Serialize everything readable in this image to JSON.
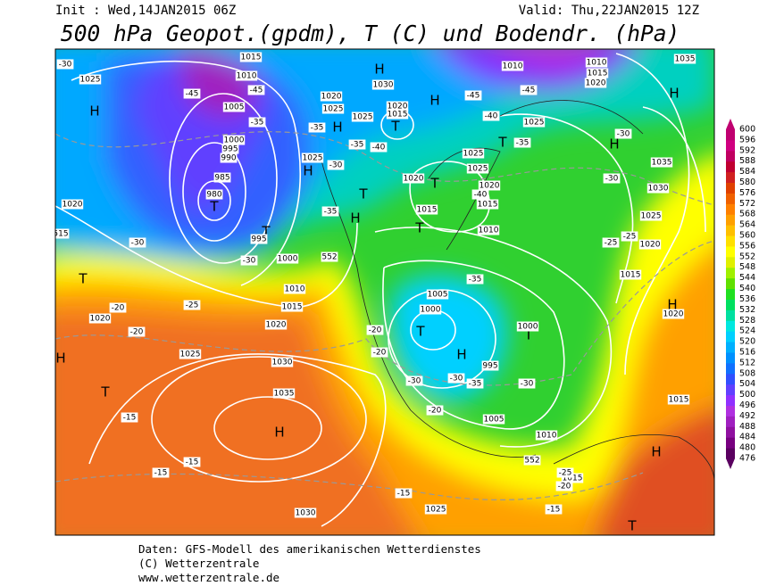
{
  "header": {
    "init": "Init : Wed,14JAN2015 06Z",
    "valid": "Valid: Thu,22JAN2015 12Z",
    "title": "500 hPa Geopot.(gpdm), T (C) und Bodendr. (hPa)"
  },
  "colorbar": {
    "levels": [
      476,
      480,
      484,
      488,
      492,
      496,
      500,
      504,
      508,
      512,
      516,
      520,
      524,
      528,
      532,
      536,
      540,
      544,
      548,
      552,
      556,
      560,
      564,
      568,
      572,
      576,
      580,
      584,
      588,
      592,
      596,
      600
    ],
    "colors": [
      "#5a0060",
      "#780080",
      "#9010a0",
      "#a020c0",
      "#b030e0",
      "#9030ff",
      "#6040ff",
      "#3050ff",
      "#1070ff",
      "#0090ff",
      "#00b0ff",
      "#00d0ff",
      "#00e8e0",
      "#00e0a0",
      "#00e060",
      "#20e020",
      "#60e000",
      "#a0f000",
      "#e0f000",
      "#ffff00",
      "#ffe000",
      "#ffc000",
      "#ffa000",
      "#ff8000",
      "#f06000",
      "#e04000",
      "#d02020",
      "#c00030",
      "#c00060",
      "#d00080",
      "#c00070"
    ]
  },
  "map_labels": [
    "H",
    "H",
    "H",
    "H",
    "H",
    "H",
    "H",
    "H",
    "H",
    "H",
    "H",
    "H",
    "H",
    "T",
    "T",
    "T",
    "T",
    "T",
    "T",
    "T",
    "T",
    "T",
    "T",
    "T",
    "T",
    "1025",
    "1015",
    "1010",
    "1005",
    "1000",
    "995",
    "990",
    "985",
    "980",
    "995",
    "1000",
    "1010",
    "1015",
    "1020",
    "1025",
    "1030",
    "1035",
    "1030",
    "1025",
    "1020",
    "1020",
    "1005",
    "1000",
    "995",
    "1005",
    "1010",
    "1015",
    "1015",
    "1020",
    "1015",
    "1020",
    "1025",
    "1030",
    "1035",
    "1035",
    "1010",
    "1015",
    "1020",
    "1010",
    "1025",
    "1025",
    "1025",
    "1020",
    "1015",
    "1010",
    "1015",
    "1020",
    "1020",
    "1015",
    "1030",
    "1025",
    "1020",
    "1025",
    "1025",
    "1000",
    "552",
    "552",
    "515",
    "-30",
    "-45",
    "-45",
    "-35",
    "-35",
    "-30",
    "-30",
    "-25",
    "-20",
    "-20",
    "-20",
    "-20",
    "-15",
    "-15",
    "-15",
    "-15",
    "-15",
    "-20",
    "-25",
    "-25",
    "-25",
    "-30",
    "-30",
    "-35",
    "-40",
    "-45",
    "-45",
    "-40",
    "-35",
    "-30",
    "-35",
    "-40",
    "-35",
    "-30",
    "-35",
    "-30",
    "-20",
    "-30"
  ],
  "footer": [
    "Daten: GFS-Modell des amerikanischen Wetterdienstes",
    "(C) Wetterzentrale",
    "www.wetterzentrale.de"
  ]
}
